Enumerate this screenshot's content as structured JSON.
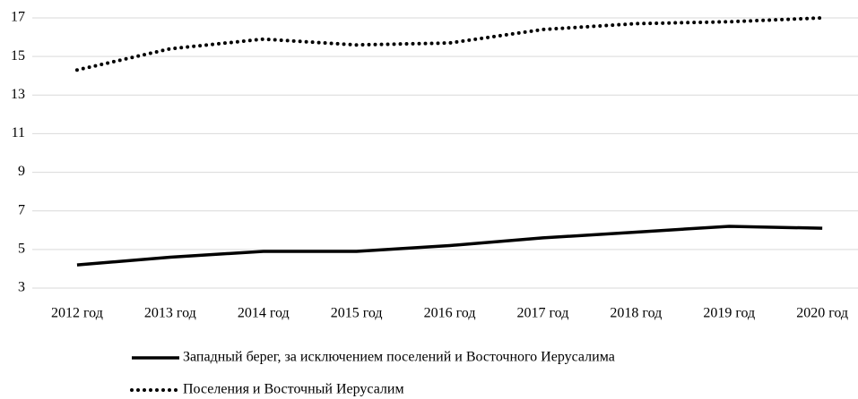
{
  "chart_data": {
    "type": "line",
    "categories": [
      "2012 год",
      "2013 год",
      "2014 год",
      "2015 год",
      "2016 год",
      "2017 год",
      "2018 год",
      "2019 год",
      "2020 год"
    ],
    "series": [
      {
        "name": "Западный берег, за исключением поселений и Восточного Иерусалима",
        "color": "#000000",
        "style": "solid",
        "values": [
          4.2,
          4.6,
          4.9,
          4.9,
          5.2,
          5.6,
          5.9,
          6.2,
          6.1
        ]
      },
      {
        "name": "Поселения и Восточный Иерусалим",
        "color": "#000000",
        "style": "dotted",
        "values": [
          14.3,
          15.4,
          15.9,
          15.6,
          15.7,
          16.4,
          16.7,
          16.8,
          17.0
        ]
      }
    ],
    "ylim": [
      3,
      17
    ],
    "yticks": [
      3,
      5,
      7,
      9,
      11,
      13,
      15,
      17
    ],
    "grid": true,
    "legend": "bottom"
  }
}
